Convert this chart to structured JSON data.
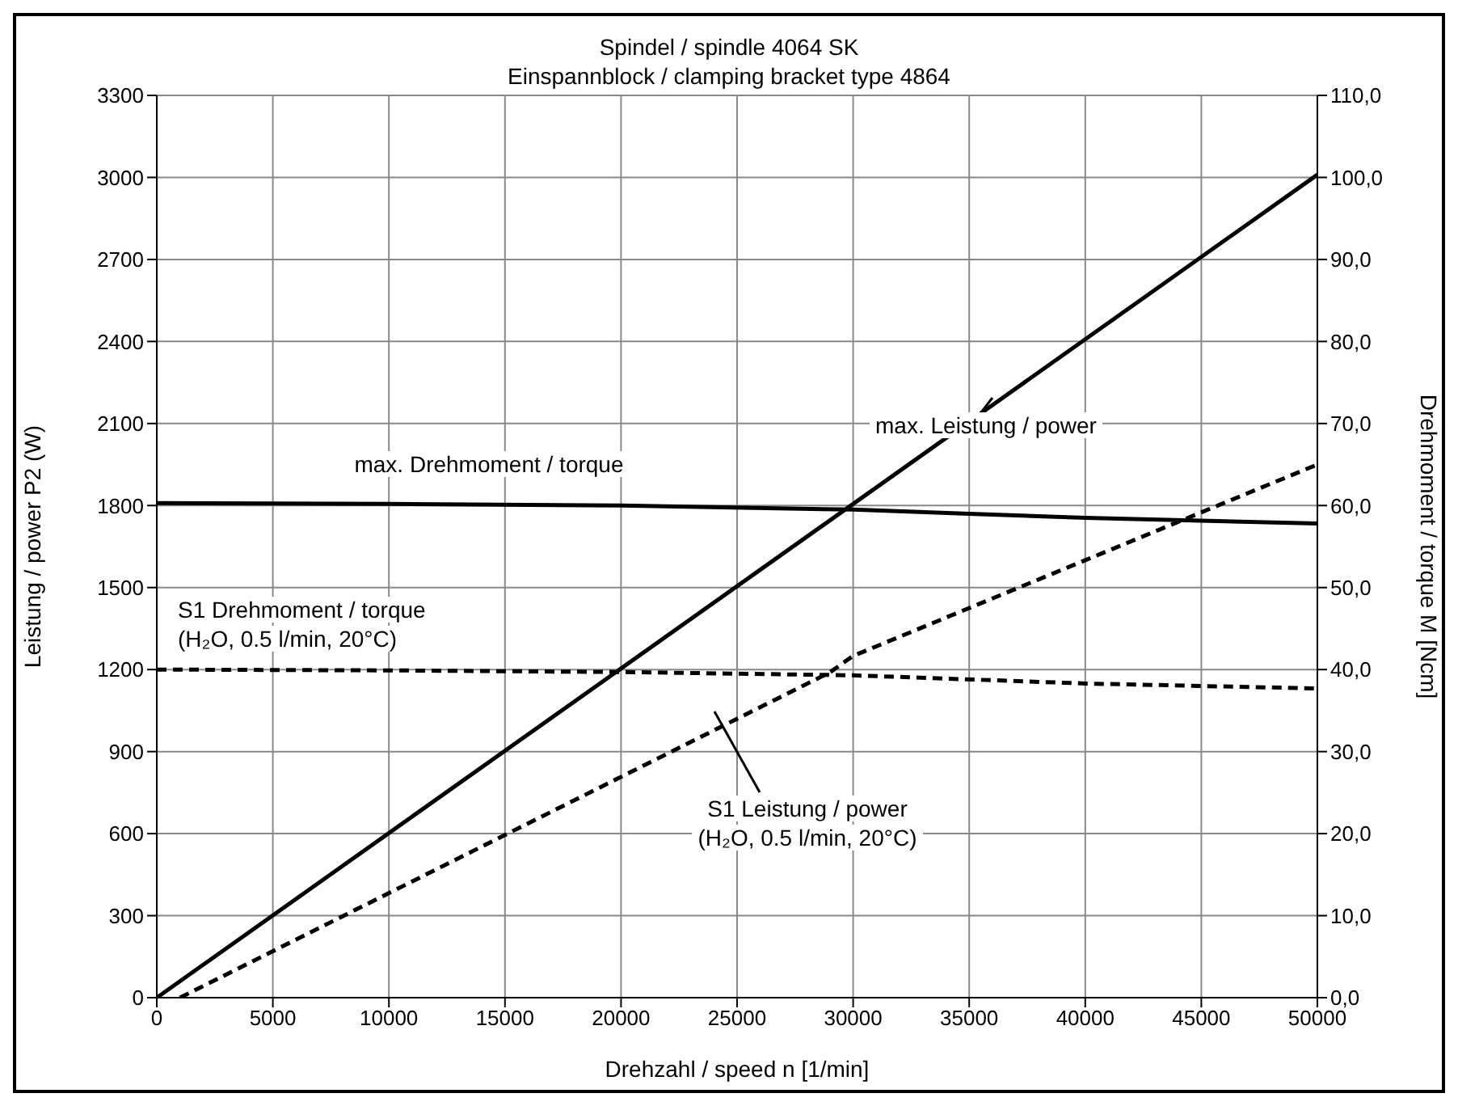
{
  "chart_data": {
    "type": "line",
    "title": "Spindel / spindle 4064 SK",
    "subtitle": "Einspannblock / clamping bracket type 4864",
    "xlabel": "Drehzahl / speed n [1/min]",
    "ylabel": "Leistung / power P2 (W)",
    "y2label": "Drehmoment / torque M [Ncm]",
    "xlim": [
      0,
      50000
    ],
    "xticks": [
      0,
      5000,
      10000,
      15000,
      20000,
      25000,
      30000,
      35000,
      40000,
      45000,
      50000
    ],
    "ylim": [
      0,
      3300
    ],
    "yticks": [
      0,
      300,
      600,
      900,
      1200,
      1500,
      1800,
      2100,
      2400,
      2700,
      3000,
      3300
    ],
    "y2lim": [
      0,
      110
    ],
    "y2ticks": [
      {
        "value": 0,
        "label": "0,0"
      },
      {
        "value": 10,
        "label": "10,0"
      },
      {
        "value": 20,
        "label": "20,0"
      },
      {
        "value": 30,
        "label": "30,0"
      },
      {
        "value": 40,
        "label": "40,0"
      },
      {
        "value": 50,
        "label": "50,0"
      },
      {
        "value": 60,
        "label": "60,0"
      },
      {
        "value": 70,
        "label": "70,0"
      },
      {
        "value": 80,
        "label": "80,0"
      },
      {
        "value": 90,
        "label": "90,0"
      },
      {
        "value": 100,
        "label": "100,0"
      },
      {
        "value": 110,
        "label": "110,0"
      }
    ],
    "grid": true,
    "marker": "none",
    "series": [
      {
        "name": "max. Leistung / power",
        "color": "#000000",
        "line_style": "solid",
        "x": [
          0,
          50000
        ],
        "values": [
          0,
          3010
        ]
      },
      {
        "name": "max. Drehmoment / torque",
        "color": "#000000",
        "line_style": "solid",
        "axis": "y2",
        "x": [
          0,
          10000,
          20000,
          30000,
          35000,
          40000,
          50000
        ],
        "values": [
          60.3,
          60.2,
          60.0,
          59.5,
          59,
          58.5,
          57.8
        ]
      },
      {
        "name": "S1 Drehmoment / torque (H₂O, 0.5 l/min, 20°C)",
        "color": "#000000",
        "line_style": "dashed",
        "axis": "y2",
        "x": [
          0,
          10000,
          20000,
          30000,
          40000,
          50000
        ],
        "values": [
          40,
          39.9,
          39.7,
          39.3,
          38.3,
          37.7
        ]
      },
      {
        "name": "S1 Leistung / power (H₂O, 0.5 l/min, 20°C)",
        "color": "#000000",
        "line_style": "dashed",
        "x": [
          1000,
          29000,
          30000,
          40000,
          50000
        ],
        "values": [
          0,
          1190,
          1250,
          1600,
          1950
        ]
      }
    ]
  }
}
